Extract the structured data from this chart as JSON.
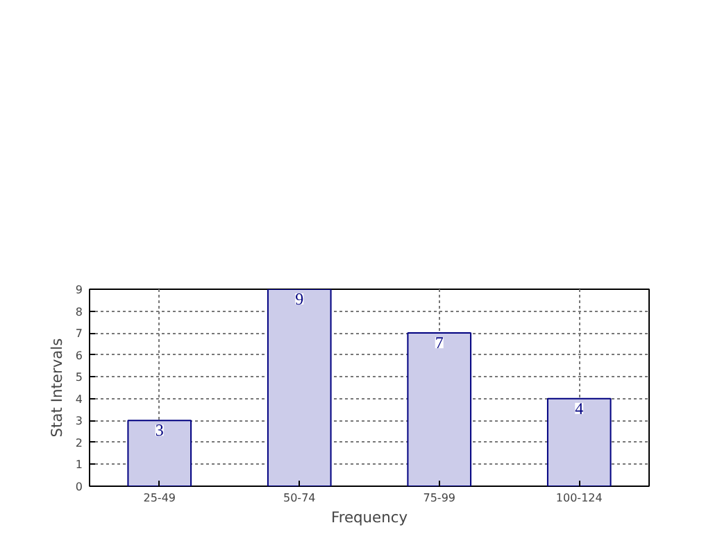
{
  "chart_data": {
    "type": "bar",
    "xlabel": "Frequency",
    "ylabel": "Stat Intervals",
    "categories": [
      "25-49",
      "50-74",
      "75-99",
      "100-124"
    ],
    "values": [
      3,
      9,
      7,
      4
    ],
    "color": "#ccccea",
    "ylim": [
      0,
      9
    ],
    "yticks": [
      0,
      1,
      2,
      3,
      4,
      5,
      6,
      7,
      8,
      9
    ],
    "grid": true,
    "data_labels": true
  }
}
